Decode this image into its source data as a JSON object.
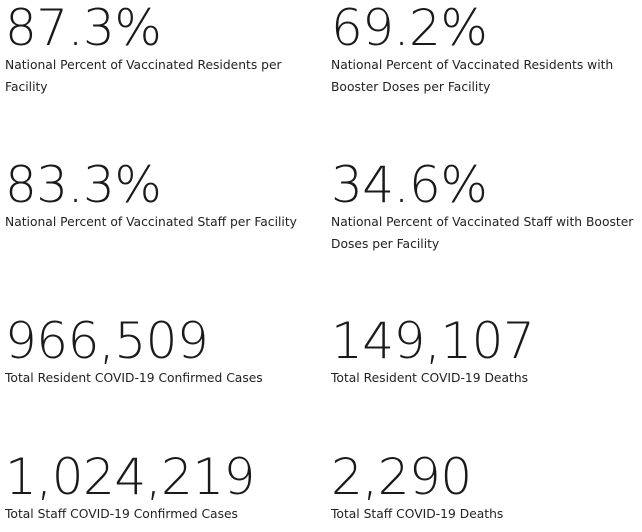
{
  "stats": [
    {
      "value": "87.3%",
      "label": "National Percent of Vaccinated Residents per Facility"
    },
    {
      "value": "69.2%",
      "label": "National Percent of Vaccinated Residents with Booster Doses per Facility"
    },
    {
      "value": "83.3%",
      "label": "National Percent of Vaccinated Staff per Facility"
    },
    {
      "value": "34.6%",
      "label": "National Percent of Vaccinated Staff with Booster Doses per Facility"
    },
    {
      "value": "966,509",
      "label": "Total Resident COVID-19 Confirmed Cases"
    },
    {
      "value": "149,107",
      "label": "Total Resident COVID-19 Deaths"
    },
    {
      "value": "1,024,219",
      "label": "Total Staff COVID-19 Confirmed Cases"
    },
    {
      "value": "2,290",
      "label": "Total Staff COVID-19 Deaths"
    }
  ]
}
